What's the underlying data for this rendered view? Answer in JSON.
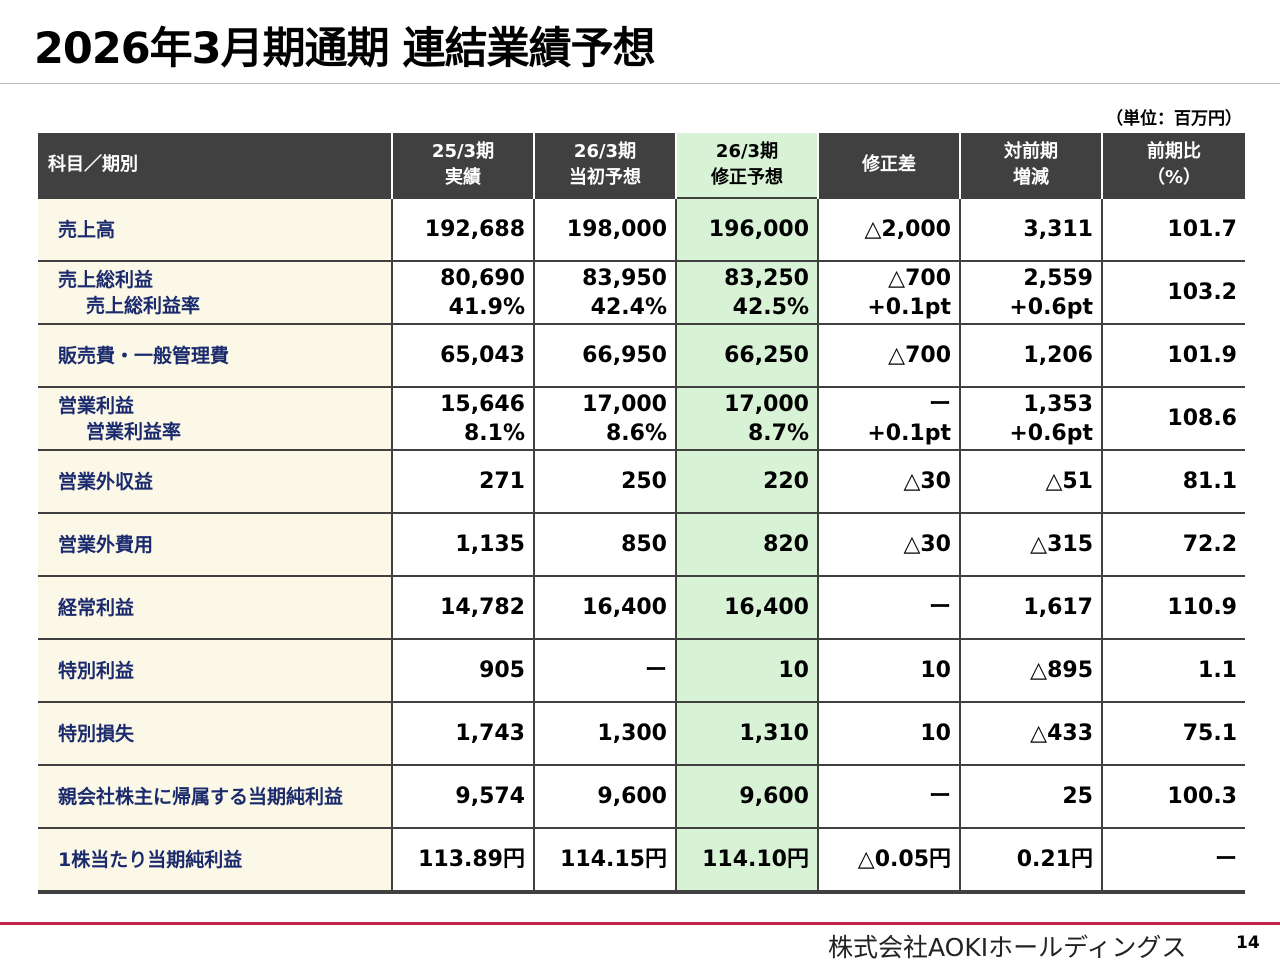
{
  "title": "2026年3月期通期 連結業績予想",
  "unit": "（単位：百万円）",
  "header": {
    "item": "科目／期別",
    "col1": [
      "25/3期",
      "実績"
    ],
    "col2": [
      "26/3期",
      "当初予想"
    ],
    "col3": [
      "26/3期",
      "修正予想"
    ],
    "col4": [
      "修正差"
    ],
    "col5": [
      "対前期",
      "増減"
    ],
    "col6": [
      "前期比",
      "（%）"
    ]
  },
  "rows": [
    {
      "labels": [
        "売上高"
      ],
      "c1": [
        "192,688"
      ],
      "c2": [
        "198,000"
      ],
      "c3": [
        "196,000"
      ],
      "c4": [
        "△2,000"
      ],
      "c5": [
        "3,311"
      ],
      "c6": [
        "101.7"
      ]
    },
    {
      "labels": [
        "売上総利益",
        "売上総利益率"
      ],
      "c1": [
        "80,690",
        "41.9%"
      ],
      "c2": [
        "83,950",
        "42.4%"
      ],
      "c3": [
        "83,250",
        "42.5%"
      ],
      "c4": [
        "△700",
        "+0.1pt"
      ],
      "c5": [
        "2,559",
        "+0.6pt"
      ],
      "c6": [
        "103.2"
      ]
    },
    {
      "labels": [
        "販売費・一般管理費"
      ],
      "c1": [
        "65,043"
      ],
      "c2": [
        "66,950"
      ],
      "c3": [
        "66,250"
      ],
      "c4": [
        "△700"
      ],
      "c5": [
        "1,206"
      ],
      "c6": [
        "101.9"
      ]
    },
    {
      "labels": [
        "営業利益",
        "営業利益率"
      ],
      "c1": [
        "15,646",
        "8.1%"
      ],
      "c2": [
        "17,000",
        "8.6%"
      ],
      "c3": [
        "17,000",
        "8.7%"
      ],
      "c4": [
        "ー",
        "+0.1pt"
      ],
      "c5": [
        "1,353",
        "+0.6pt"
      ],
      "c6": [
        "108.6"
      ]
    },
    {
      "labels": [
        "営業外収益"
      ],
      "c1": [
        "271"
      ],
      "c2": [
        "250"
      ],
      "c3": [
        "220"
      ],
      "c4": [
        "△30"
      ],
      "c5": [
        "△51"
      ],
      "c6": [
        "81.1"
      ]
    },
    {
      "labels": [
        "営業外費用"
      ],
      "c1": [
        "1,135"
      ],
      "c2": [
        "850"
      ],
      "c3": [
        "820"
      ],
      "c4": [
        "△30"
      ],
      "c5": [
        "△315"
      ],
      "c6": [
        "72.2"
      ]
    },
    {
      "labels": [
        "経常利益"
      ],
      "c1": [
        "14,782"
      ],
      "c2": [
        "16,400"
      ],
      "c3": [
        "16,400"
      ],
      "c4": [
        "ー"
      ],
      "c5": [
        "1,617"
      ],
      "c6": [
        "110.9"
      ]
    },
    {
      "labels": [
        "特別利益"
      ],
      "c1": [
        "905"
      ],
      "c2": [
        "ー"
      ],
      "c3": [
        "10"
      ],
      "c4": [
        "10"
      ],
      "c5": [
        "△895"
      ],
      "c6": [
        "1.1"
      ]
    },
    {
      "labels": [
        "特別損失"
      ],
      "c1": [
        "1,743"
      ],
      "c2": [
        "1,300"
      ],
      "c3": [
        "1,310"
      ],
      "c4": [
        "10"
      ],
      "c5": [
        "△433"
      ],
      "c6": [
        "75.1"
      ]
    },
    {
      "labels": [
        "親会社株主に帰属する当期純利益"
      ],
      "c1": [
        "9,574"
      ],
      "c2": [
        "9,600"
      ],
      "c3": [
        "9,600"
      ],
      "c4": [
        "ー"
      ],
      "c5": [
        "25"
      ],
      "c6": [
        "100.3"
      ]
    },
    {
      "labels": [
        "1株当たり当期純利益"
      ],
      "c1": [
        "113.89円"
      ],
      "c2": [
        "114.15円"
      ],
      "c3": [
        "114.10円"
      ],
      "c4": [
        "△0.05円"
      ],
      "c5": [
        "0.21円"
      ],
      "c6": [
        "ー"
      ]
    }
  ],
  "footer": {
    "company": "株式会社AOKIホールディングス",
    "page": "14"
  },
  "colors": {
    "header_bg": "#404040",
    "highlight_bg": "#d8f2d6",
    "label_bg": "#fbf8e8",
    "label_text": "#1a2a6c",
    "accent_rule": "#c0224a"
  }
}
